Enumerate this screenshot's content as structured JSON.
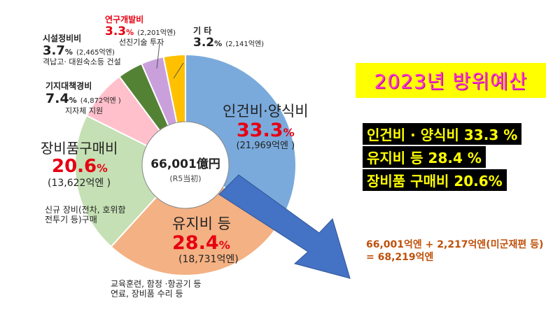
{
  "chart_data": {
    "type": "pie",
    "variant": "donut",
    "slices": [
      {
        "name": "인건비·양식비",
        "pct": "33.3",
        "amount": "(21,969억엔 )",
        "value": 33.3,
        "color": "#7aaadc",
        "desc": []
      },
      {
        "name": "유지비 등",
        "pct": "28.4",
        "amount": "(18,731억엔)",
        "value": 28.4,
        "color": "#f4b183",
        "desc": [
          "교육훈련, 함정 ·항공기 등",
          "연료, 장비품 수리 등"
        ]
      },
      {
        "name": "장비품구매비",
        "pct": "20.6",
        "amount": "(13,622억엔 )",
        "value": 20.6,
        "color": "#c5e0b4",
        "desc": [
          "신규 장비(전차, 호위함",
          "전투기 등)구매"
        ]
      },
      {
        "name": "기지대책경비",
        "pct": "7.4",
        "amount": "(4,872억엔 )",
        "value": 7.4,
        "color": "#ffc0cb",
        "desc": [
          "지자체 지원"
        ]
      },
      {
        "name": "시설정비비",
        "pct": "3.7",
        "amount": "(2,465억엔)",
        "value": 3.7,
        "color": "#548235",
        "desc": [
          "격납고· 대원숙소등 건설"
        ]
      },
      {
        "name": "연구개발비",
        "pct": "3.3",
        "amount": "(2,201억엔)",
        "value": 3.3,
        "color": "#c9a0dc",
        "desc": [
          "선진기술 투자"
        ]
      },
      {
        "name": "기 타",
        "pct": "3.2",
        "amount": "(2,141억엔)",
        "value": 3.2,
        "color": "#ffc000",
        "desc": []
      }
    ],
    "center_total": "66,001億円",
    "center_sub": "(R5当初)",
    "percent_sign": "%"
  },
  "title": "2023년 방위예산",
  "summary": [
    "인건비 · 양식비 33.3 %",
    "유지비 등 28.4 %",
    "장비품 구매비 20.6%"
  ],
  "total_note": [
    "66,001억엔 + 2,217억엔(미군재편 등)",
    "= 68,219억엔"
  ],
  "colors": {
    "arrow": "#4472c4",
    "title_bg": "#ffff00",
    "title_text": "#ff33cc",
    "summary_bg": "#000000",
    "summary_text": "#ffff00",
    "pct_red": "#e60012",
    "total_text": "#c0500a"
  }
}
